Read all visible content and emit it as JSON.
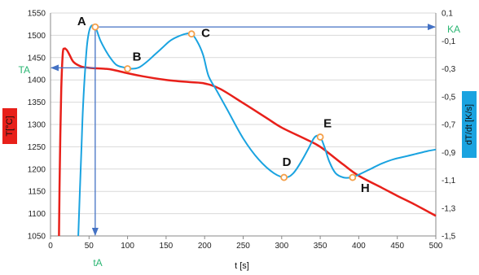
{
  "chart_data": {
    "type": "line",
    "xlabel": "t [s]",
    "ylabel_left": "T[°C]",
    "ylabel_right": "dT/dt [K/s]",
    "ylim_left": [
      1050,
      1550
    ],
    "ylim_right": [
      -1.5,
      0.1
    ],
    "xlim": [
      0,
      500
    ],
    "grid": "horizontal",
    "x_ticks": [
      "0",
      "50",
      "100",
      "150",
      "200",
      "250",
      "300",
      "350",
      "400",
      "450",
      "500"
    ],
    "y_left_ticks": [
      "1050",
      "1100",
      "1150",
      "1200",
      "1250",
      "1300",
      "1350",
      "1400",
      "1450",
      "1500",
      "1550"
    ],
    "y_right_ticks": [
      "0,1",
      "-0,1",
      "-0,3",
      "-0,5",
      "-0,7",
      "-0,9",
      "-1,1",
      "-1,3",
      "-1,5"
    ],
    "colors": {
      "temperature": "#e8201a",
      "rate": "#1aa3e0",
      "arrows": "#4472c4",
      "point_marker": "#f5a04a",
      "left_label_bg": "#e8201a",
      "right_label_bg": "#1aa3e0",
      "annotation_green": "#2bb673"
    },
    "series": [
      {
        "axis": "left",
        "x": [
          11,
          12,
          14,
          16,
          18,
          20,
          22,
          25,
          30,
          40,
          50,
          60,
          70,
          80,
          100,
          120,
          150,
          180,
          200,
          220,
          250,
          280,
          300,
          330,
          350,
          380,
          400,
          430,
          450,
          470,
          500
        ],
        "values": [
          1050,
          1200,
          1380,
          1460,
          1470,
          1469,
          1465,
          1455,
          1440,
          1430,
          1427,
          1426,
          1425,
          1423,
          1415,
          1408,
          1400,
          1395,
          1392,
          1380,
          1348,
          1315,
          1293,
          1268,
          1250,
          1210,
          1185,
          1158,
          1140,
          1123,
          1095
        ]
      },
      {
        "axis": "right",
        "x": [
          36,
          38,
          40,
          42,
          45,
          48,
          52,
          58,
          65,
          75,
          85,
          95,
          105,
          115,
          125,
          135,
          145,
          155,
          165,
          175,
          183,
          190,
          198,
          205,
          215,
          230,
          250,
          270,
          290,
          305,
          315,
          325,
          335,
          343,
          350,
          356,
          362,
          370,
          380,
          390,
          400,
          415,
          430,
          445,
          460,
          475,
          490,
          500
        ],
        "values": [
          -1.5,
          -1.2,
          -0.9,
          -0.6,
          -0.3,
          -0.1,
          0.0,
          0.0,
          -0.1,
          -0.2,
          -0.27,
          -0.29,
          -0.3,
          -0.29,
          -0.25,
          -0.2,
          -0.15,
          -0.1,
          -0.07,
          -0.05,
          -0.05,
          -0.1,
          -0.2,
          -0.35,
          -0.45,
          -0.6,
          -0.8,
          -0.95,
          -1.05,
          -1.08,
          -1.05,
          -0.97,
          -0.87,
          -0.79,
          -0.79,
          -0.87,
          -0.97,
          -1.05,
          -1.08,
          -1.08,
          -1.06,
          -1.02,
          -0.98,
          -0.95,
          -0.93,
          -0.91,
          -0.89,
          -0.88
        ]
      }
    ],
    "points": [
      {
        "label": "A",
        "x": 58,
        "y": 0.0
      },
      {
        "label": "B",
        "x": 100,
        "y": -0.3
      },
      {
        "label": "C",
        "x": 183,
        "y": -0.05
      },
      {
        "label": "D",
        "x": 303,
        "y": -1.08
      },
      {
        "label": "E",
        "x": 350,
        "y": -0.79
      },
      {
        "label": "H",
        "x": 392,
        "y": -1.08
      }
    ],
    "annotations": {
      "TA": "TA",
      "tA": "tA",
      "KA": "KA"
    }
  }
}
